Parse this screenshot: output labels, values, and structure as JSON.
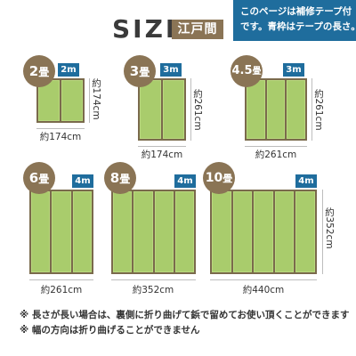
{
  "header": {
    "title": "SIZE",
    "edo_label": "江戸間",
    "notice_lines": [
      "このページは補修テープ付",
      "です。青枠はテープの長さ。"
    ]
  },
  "items": [
    {
      "label": "2",
      "unit": "畳",
      "tape": "2m",
      "width": "約174cm",
      "height": "約174cm",
      "strips": 2
    },
    {
      "label": "3",
      "unit": "畳",
      "tape": "3m",
      "width": "約174cm",
      "height": "約261cm",
      "strips": 2
    },
    {
      "label": "4.5",
      "unit": "畳",
      "tape": "3m",
      "width": "約261cm",
      "height": "約261cm",
      "strips": 3
    },
    {
      "label": "6",
      "unit": "畳",
      "tape": "4m",
      "width": "約261cm",
      "height": "",
      "strips": 3
    },
    {
      "label": "8",
      "unit": "畳",
      "tape": "4m",
      "width": "約352cm",
      "height": "",
      "strips": 4
    },
    {
      "label": "10",
      "unit": "畳",
      "tape": "4m",
      "width": "約440cm",
      "height": "約352cm",
      "strips": 5
    }
  ],
  "notes": [
    "※ 長さが長い場合は、裏側に折り曲げて鋲で留めてお使い頂くことができます",
    "※ 幅の方向は折り曲げることができません"
  ],
  "colors": {
    "brown": "#8a7455",
    "blue": "#1f6d9d",
    "mat_green": "#a9cc6c",
    "mat_border": "#7a6a4c"
  }
}
